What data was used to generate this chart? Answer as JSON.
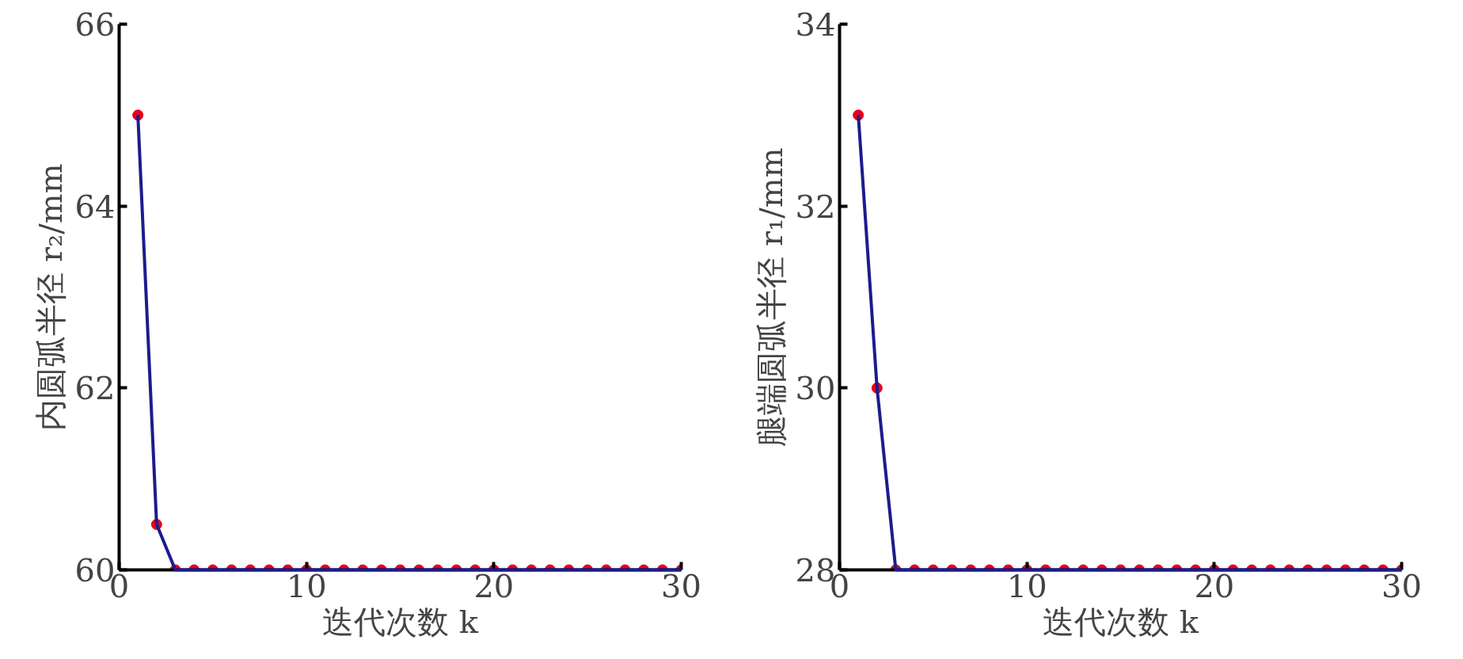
{
  "chart_data": [
    {
      "type": "line",
      "xlabel": "迭代次数 k",
      "ylabel": "内圆弧半径 r₂/mm",
      "x": [
        1,
        2,
        3,
        4,
        5,
        6,
        7,
        8,
        9,
        10,
        11,
        12,
        13,
        14,
        15,
        16,
        17,
        18,
        19,
        20,
        21,
        22,
        23,
        24,
        25,
        26,
        27,
        28,
        29,
        30
      ],
      "series": [
        {
          "type": "scatter",
          "color": "#e8001c",
          "marker": "circle",
          "values": [
            65,
            60.5,
            60,
            60,
            60,
            60,
            60,
            60,
            60,
            60,
            60,
            60,
            60,
            60,
            60,
            60,
            60,
            60,
            60,
            60,
            60,
            60,
            60,
            60,
            60,
            60,
            60,
            60,
            60,
            60
          ]
        },
        {
          "color": "#1c1c8c",
          "marker": "none",
          "values": [
            65,
            60.5,
            60,
            60,
            60,
            60,
            60,
            60,
            60,
            60,
            60,
            60,
            60,
            60,
            60,
            60,
            60,
            60,
            60,
            60,
            60,
            60,
            60,
            60,
            60,
            60,
            60,
            60,
            60,
            60
          ]
        }
      ],
      "xlim": [
        0,
        30
      ],
      "ylim": [
        60,
        66
      ],
      "xticks": [
        0,
        10,
        20,
        30
      ],
      "yticks": [
        60,
        62,
        64,
        66
      ],
      "grid": false
    },
    {
      "type": "line",
      "xlabel": "迭代次数 k",
      "ylabel": "腿端圆弧半径 r₁/mm",
      "x": [
        1,
        2,
        3,
        4,
        5,
        6,
        7,
        8,
        9,
        10,
        11,
        12,
        13,
        14,
        15,
        16,
        17,
        18,
        19,
        20,
        21,
        22,
        23,
        24,
        25,
        26,
        27,
        28,
        29,
        30
      ],
      "series": [
        {
          "type": "scatter",
          "color": "#e8001c",
          "marker": "circle",
          "values": [
            33,
            30,
            28,
            28,
            28,
            28,
            28,
            28,
            28,
            28,
            28,
            28,
            28,
            28,
            28,
            28,
            28,
            28,
            28,
            28,
            28,
            28,
            28,
            28,
            28,
            28,
            28,
            28,
            28,
            28
          ]
        },
        {
          "color": "#1c1c8c",
          "marker": "none",
          "values": [
            33,
            30,
            28,
            28,
            28,
            28,
            28,
            28,
            28,
            28,
            28,
            28,
            28,
            28,
            28,
            28,
            28,
            28,
            28,
            28,
            28,
            28,
            28,
            28,
            28,
            28,
            28,
            28,
            28,
            28
          ]
        }
      ],
      "xlim": [
        0,
        30
      ],
      "ylim": [
        28,
        34
      ],
      "xticks": [
        0,
        10,
        20,
        30
      ],
      "yticks": [
        28,
        30,
        32,
        34
      ],
      "grid": false
    }
  ]
}
